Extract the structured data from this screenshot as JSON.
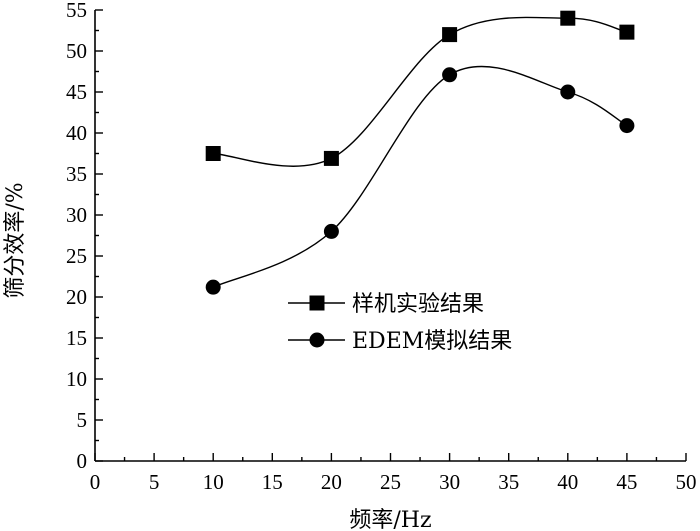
{
  "chart_data": {
    "type": "line",
    "xlabel": "频率/Hz",
    "ylabel": "筛分效率/%",
    "xlim": [
      0,
      50
    ],
    "ylim": [
      0,
      55
    ],
    "xticks": [
      0,
      5,
      10,
      15,
      20,
      25,
      30,
      35,
      40,
      45,
      50
    ],
    "yticks": [
      0,
      5,
      10,
      15,
      20,
      25,
      30,
      35,
      40,
      45,
      50,
      55
    ],
    "grid": false,
    "legend_position": "center-right",
    "series": [
      {
        "name": "样机实验结果",
        "marker": "square",
        "x": [
          10,
          20,
          30,
          40,
          45
        ],
        "y": [
          37.5,
          36.9,
          52.0,
          54.0,
          52.3
        ]
      },
      {
        "name": "EDEM模拟结果",
        "marker": "circle",
        "x": [
          10,
          20,
          30,
          40,
          45
        ],
        "y": [
          21.2,
          28.0,
          47.1,
          45.0,
          40.9
        ]
      }
    ]
  }
}
